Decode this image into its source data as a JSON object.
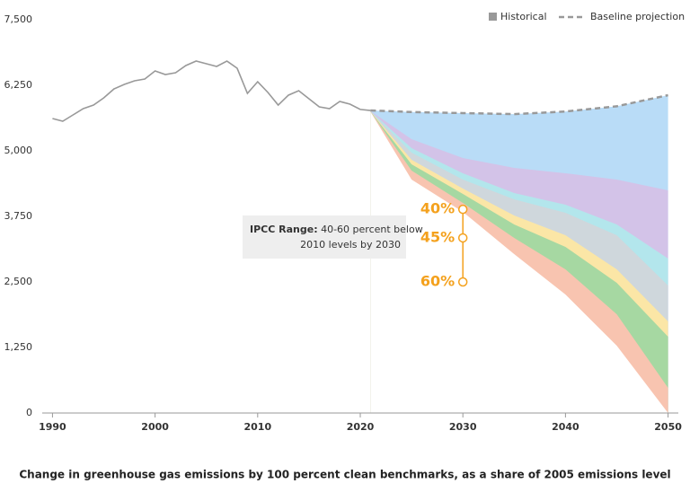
{
  "chart_data": {
    "type": "area",
    "title": "Change in greenhouse gas emissions by 100 percent clean benchmarks, as a share of 2005 emissions level",
    "xlim": [
      1989,
      2051
    ],
    "xticks": [
      1990,
      2000,
      2010,
      2020,
      2030,
      2040,
      2050
    ],
    "ylim": [
      0,
      7500
    ],
    "yticks": [
      0,
      {
        "value": 1250,
        "label": "1,250"
      },
      {
        "value": 2500,
        "label": "2,500"
      },
      {
        "value": 3750,
        "label": "3,750"
      },
      {
        "value": 5000,
        "label": "5,000"
      },
      {
        "value": 6250,
        "label": "6,250"
      },
      {
        "value": 7500,
        "label": "7,500"
      }
    ],
    "legend": "top-right",
    "line_series": [
      {
        "name": "Historical",
        "color": "#999999",
        "x": [
          1990,
          1991,
          1992,
          1993,
          1994,
          1995,
          1996,
          1997,
          1998,
          1999,
          2000,
          2001,
          2002,
          2003,
          2004,
          2005,
          2006,
          2007,
          2008,
          2009,
          2010,
          2011,
          2012,
          2013,
          2014,
          2015,
          2016,
          2017,
          2018,
          2019,
          2020,
          2021
        ],
        "values": [
          5616,
          5565,
          5685,
          5805,
          5873,
          6010,
          6182,
          6267,
          6336,
          6370,
          6524,
          6455,
          6490,
          6627,
          6712,
          6661,
          6610,
          6712,
          6575,
          6096,
          6318,
          6113,
          5873,
          6062,
          6147,
          5993,
          5839,
          5805,
          5942,
          5890,
          5790,
          5770
        ]
      },
      {
        "name": "Baseline projection",
        "color": "#999999",
        "dashed": true,
        "x": [
          2021,
          2025,
          2030,
          2035,
          2040,
          2045,
          2050
        ],
        "values": [
          5770,
          5740,
          5720,
          5700,
          5750,
          5850,
          6062
        ]
      }
    ],
    "series": [
      {
        "color": "#b9dcf7",
        "x": [
          2021,
          2025,
          2030,
          2035,
          2040,
          2045,
          2050
        ],
        "values": [
          5770,
          5740,
          5720,
          5700,
          5750,
          5850,
          6062
        ]
      },
      {
        "color": "#d3c3e8",
        "x": [
          2021,
          2025,
          2030,
          2035,
          2040,
          2045,
          2050
        ],
        "values": [
          5760,
          5223,
          4863,
          4675,
          4572,
          4452,
          4247
        ]
      },
      {
        "color": "#b3e6ec",
        "x": [
          2021,
          2025,
          2030,
          2035,
          2040,
          2045,
          2050
        ],
        "values": [
          5755,
          5051,
          4572,
          4195,
          3973,
          3596,
          2945
        ]
      },
      {
        "color": "#cfd7dc",
        "x": [
          2021,
          2025,
          2030,
          2035,
          2040,
          2045,
          2050
        ],
        "values": [
          5752,
          4966,
          4452,
          4075,
          3818,
          3390,
          2432
        ]
      },
      {
        "color": "#fbe6a6",
        "x": [
          2021,
          2025,
          2030,
          2035,
          2040,
          2045,
          2050
        ],
        "values": [
          5750,
          4829,
          4281,
          3767,
          3390,
          2740,
          1747
        ]
      },
      {
        "color": "#a6d8a2",
        "x": [
          2021,
          2025,
          2030,
          2035,
          2040,
          2045,
          2050
        ],
        "values": [
          5748,
          4743,
          4178,
          3596,
          3168,
          2483,
          1455
        ]
      },
      {
        "color": "#f8c4b0",
        "x": [
          2021,
          2025,
          2030,
          2035,
          2040,
          2045,
          2050
        ],
        "values": [
          5746,
          4623,
          4007,
          3339,
          2740,
          1884,
          479
        ]
      },
      {
        "color": "#ffffff",
        "x": [
          2021,
          2025,
          2030,
          2035,
          2040,
          2045,
          2050
        ],
        "values": [
          5744,
          4452,
          3836,
          3031,
          2260,
          1284,
          0
        ]
      }
    ],
    "ipcc": {
      "color": "#f4a11d",
      "x": [
        2030,
        2030,
        2030
      ],
      "values": [
        3885,
        3340,
        2500
      ],
      "value_labels": [
        "40%",
        "45%",
        "60%"
      ]
    },
    "annotation": {
      "label": "IPCC Range:",
      "lines": [
        "40-60 percent below",
        "2010 levels by 2030"
      ]
    }
  }
}
